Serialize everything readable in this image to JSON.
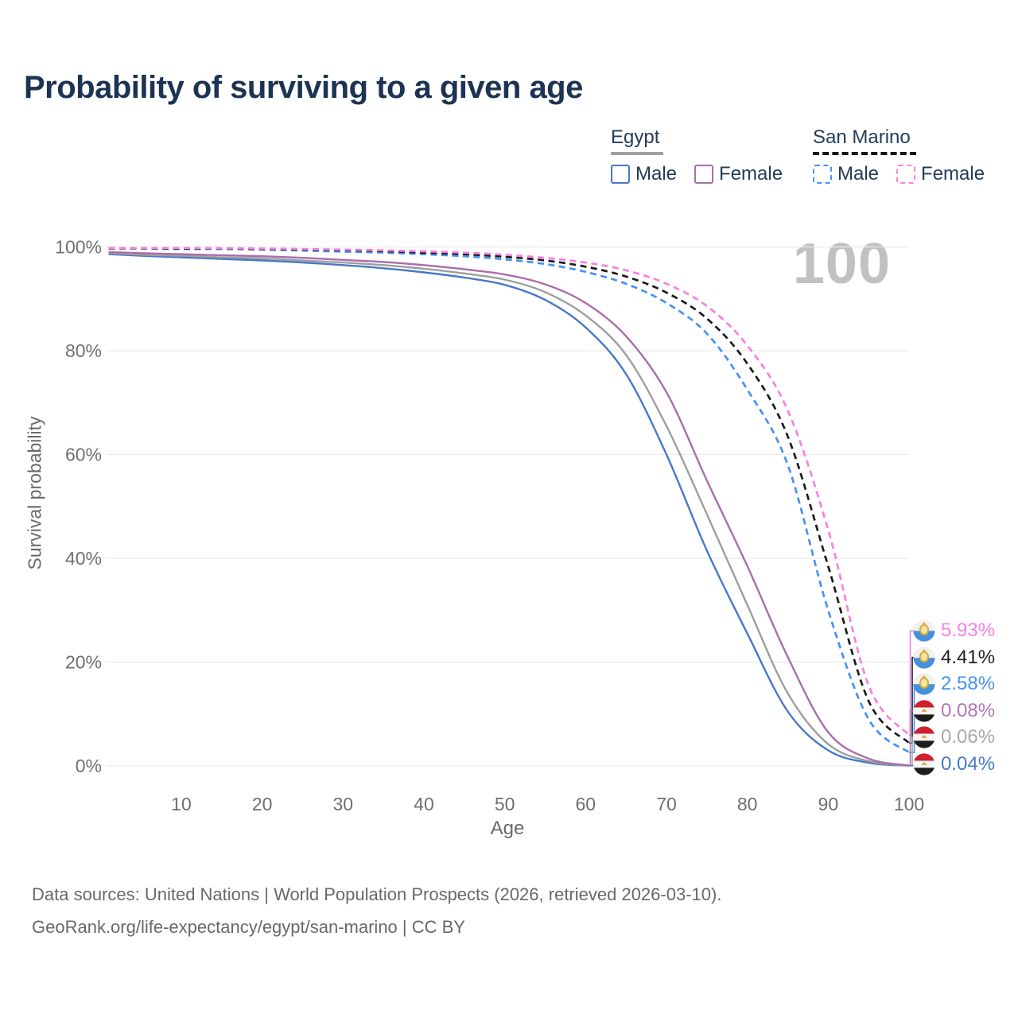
{
  "title": "Probability of surviving to a given age",
  "legend": {
    "groups": [
      {
        "label": "Egypt",
        "line_style": "solid",
        "underline_color": "#a0a0a0",
        "items": [
          {
            "label": "Male",
            "color": "#4678c8"
          },
          {
            "label": "Female",
            "color": "#ab6cab"
          }
        ]
      },
      {
        "label": "San Marino",
        "line_style": "dashed",
        "underline_color": "#141414",
        "items": [
          {
            "label": "Male",
            "color": "#4692f2"
          },
          {
            "label": "Female",
            "color": "#fa7fe1"
          }
        ]
      }
    ]
  },
  "chart_data": {
    "type": "line",
    "title": "Probability of surviving to a given age",
    "xlabel": "Age",
    "ylabel": "Survival probability",
    "xlim": [
      0,
      100
    ],
    "ylim": [
      0,
      100
    ],
    "xticks": [
      10,
      20,
      30,
      40,
      50,
      60,
      70,
      80,
      90,
      100
    ],
    "yticks": [
      0,
      20,
      40,
      60,
      80,
      100
    ],
    "ytick_suffix": "%",
    "grid": "horizontal",
    "age_counter": "100",
    "x": [
      1,
      5,
      10,
      15,
      20,
      25,
      30,
      35,
      40,
      45,
      50,
      55,
      60,
      65,
      70,
      75,
      80,
      85,
      90,
      95,
      100
    ],
    "series": [
      {
        "key": "egypt_male",
        "name": "Egypt — Male",
        "color": "#4678c8",
        "dash": false,
        "end_label": "0.04%",
        "label_color": "#4678c8",
        "flag": "egypt",
        "values": [
          98.6,
          98.3,
          98.0,
          97.7,
          97.4,
          97.0,
          96.5,
          95.9,
          95.1,
          94.1,
          92.7,
          89.8,
          84.5,
          75.5,
          60.0,
          41.5,
          25.5,
          10.5,
          3.0,
          0.6,
          0.04
        ]
      },
      {
        "key": "egypt_both",
        "name": "Egypt — Both sexes",
        "color": "#9e9e9e",
        "dash": false,
        "end_label": "0.06%",
        "label_color": "#a8a8a8",
        "flag": "egypt",
        "values": [
          98.8,
          98.5,
          98.3,
          98.0,
          97.8,
          97.4,
          97.0,
          96.5,
          95.8,
          94.9,
          93.7,
          91.3,
          86.8,
          79.2,
          65.5,
          48.5,
          31.0,
          14.0,
          4.2,
          0.9,
          0.06
        ]
      },
      {
        "key": "egypt_female",
        "name": "Egypt — Female",
        "color": "#ab6cab",
        "dash": false,
        "end_label": "0.08%",
        "label_color": "#b476b4",
        "flag": "egypt",
        "values": [
          99.0,
          98.8,
          98.6,
          98.4,
          98.2,
          97.9,
          97.5,
          97.1,
          96.5,
          95.7,
          94.7,
          92.8,
          89.2,
          82.8,
          72.0,
          55.0,
          38.5,
          21.0,
          6.5,
          1.4,
          0.08
        ]
      },
      {
        "key": "sm_male",
        "name": "San Marino — Male",
        "color": "#4692f2",
        "dash": true,
        "end_label": "2.58%",
        "label_color": "#4692f2",
        "flag": "san-marino",
        "values": [
          99.7,
          99.7,
          99.6,
          99.6,
          99.5,
          99.3,
          99.1,
          98.9,
          98.6,
          98.2,
          97.6,
          96.7,
          95.2,
          92.9,
          89.2,
          83.3,
          72.5,
          58.0,
          30.0,
          9.0,
          2.58
        ]
      },
      {
        "key": "sm_both",
        "name": "San Marino — Both sexes",
        "color": "#1b1b1b",
        "dash": true,
        "end_label": "4.41%",
        "label_color": "#1f1f1f",
        "flag": "san-marino",
        "values": [
          99.75,
          99.75,
          99.7,
          99.7,
          99.6,
          99.5,
          99.4,
          99.2,
          98.9,
          98.6,
          98.1,
          97.4,
          96.2,
          94.3,
          91.2,
          86.2,
          77.5,
          63.5,
          38.5,
          12.5,
          4.41
        ]
      },
      {
        "key": "sm_female",
        "name": "San Marino — Female",
        "color": "#fa7fe1",
        "dash": true,
        "end_label": "5.93%",
        "label_color": "#fa7fe1",
        "flag": "san-marino",
        "values": [
          99.8,
          99.8,
          99.8,
          99.75,
          99.7,
          99.6,
          99.5,
          99.35,
          99.15,
          98.9,
          98.5,
          97.9,
          97.0,
          95.5,
          92.9,
          88.6,
          81.0,
          68.5,
          45.5,
          15.5,
          5.93
        ]
      }
    ],
    "label_order": [
      "sm_female",
      "sm_both",
      "sm_male",
      "egypt_female",
      "egypt_both",
      "egypt_male"
    ]
  },
  "footer": {
    "line1": "Data sources: United Nations | World Population Prospects (2026, retrieved 2026-03-10).",
    "line2": "GeoRank.org/life-expectancy/egypt/san-marino | CC BY"
  }
}
